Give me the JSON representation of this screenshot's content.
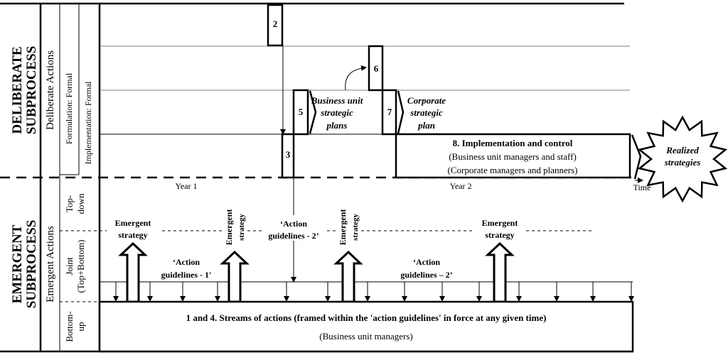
{
  "left_labels": {
    "deliberate_subprocess": [
      "DELIBERATE",
      "SUBPROCESS"
    ],
    "emergent_subprocess": [
      "EMERGENT",
      "SUBPROCESS"
    ],
    "deliberate_actions": "Deliberate Actions",
    "emergent_actions": "Emergent Actions",
    "formulation": "Formulation: Formal",
    "implementation": "Implementation: Formal",
    "top_down": [
      "Top-",
      "down"
    ],
    "joint": [
      "Joint",
      "(Top+Bottom)"
    ],
    "bottom_up": [
      "Bottom-",
      "up"
    ]
  },
  "deliberate": {
    "box2": "2",
    "box3": "3",
    "box5": "5",
    "box6": "6",
    "box7": "7",
    "business_unit_plans": [
      "Business unit",
      "strategic",
      "plans"
    ],
    "corporate_plan": [
      "Corporate",
      "strategic",
      "plan"
    ],
    "box8": {
      "title": "8. Implementation and control",
      "line1": "(Business unit managers and staff)",
      "line2": "(Corporate managers and planners)"
    },
    "realized": [
      "Realized",
      "strategies"
    ]
  },
  "timeline": {
    "year1": "Year 1",
    "year2": "Year 2",
    "time": "Time"
  },
  "emergent": {
    "emergent_strategy": [
      "Emergent",
      "strategy"
    ],
    "action_guidelines_1": [
      "‘Action",
      "guidelines - 1'"
    ],
    "action_guidelines_2_top": [
      "‘Action",
      "guidelines - 2’"
    ],
    "action_guidelines_2": [
      "‘Action",
      "guidelines – 2’"
    ],
    "streams": {
      "title": "1 and 4. Streams of actions (framed within the 'action guidelines' in force at any given time)",
      "subtitle": "(Business unit managers)"
    }
  }
}
